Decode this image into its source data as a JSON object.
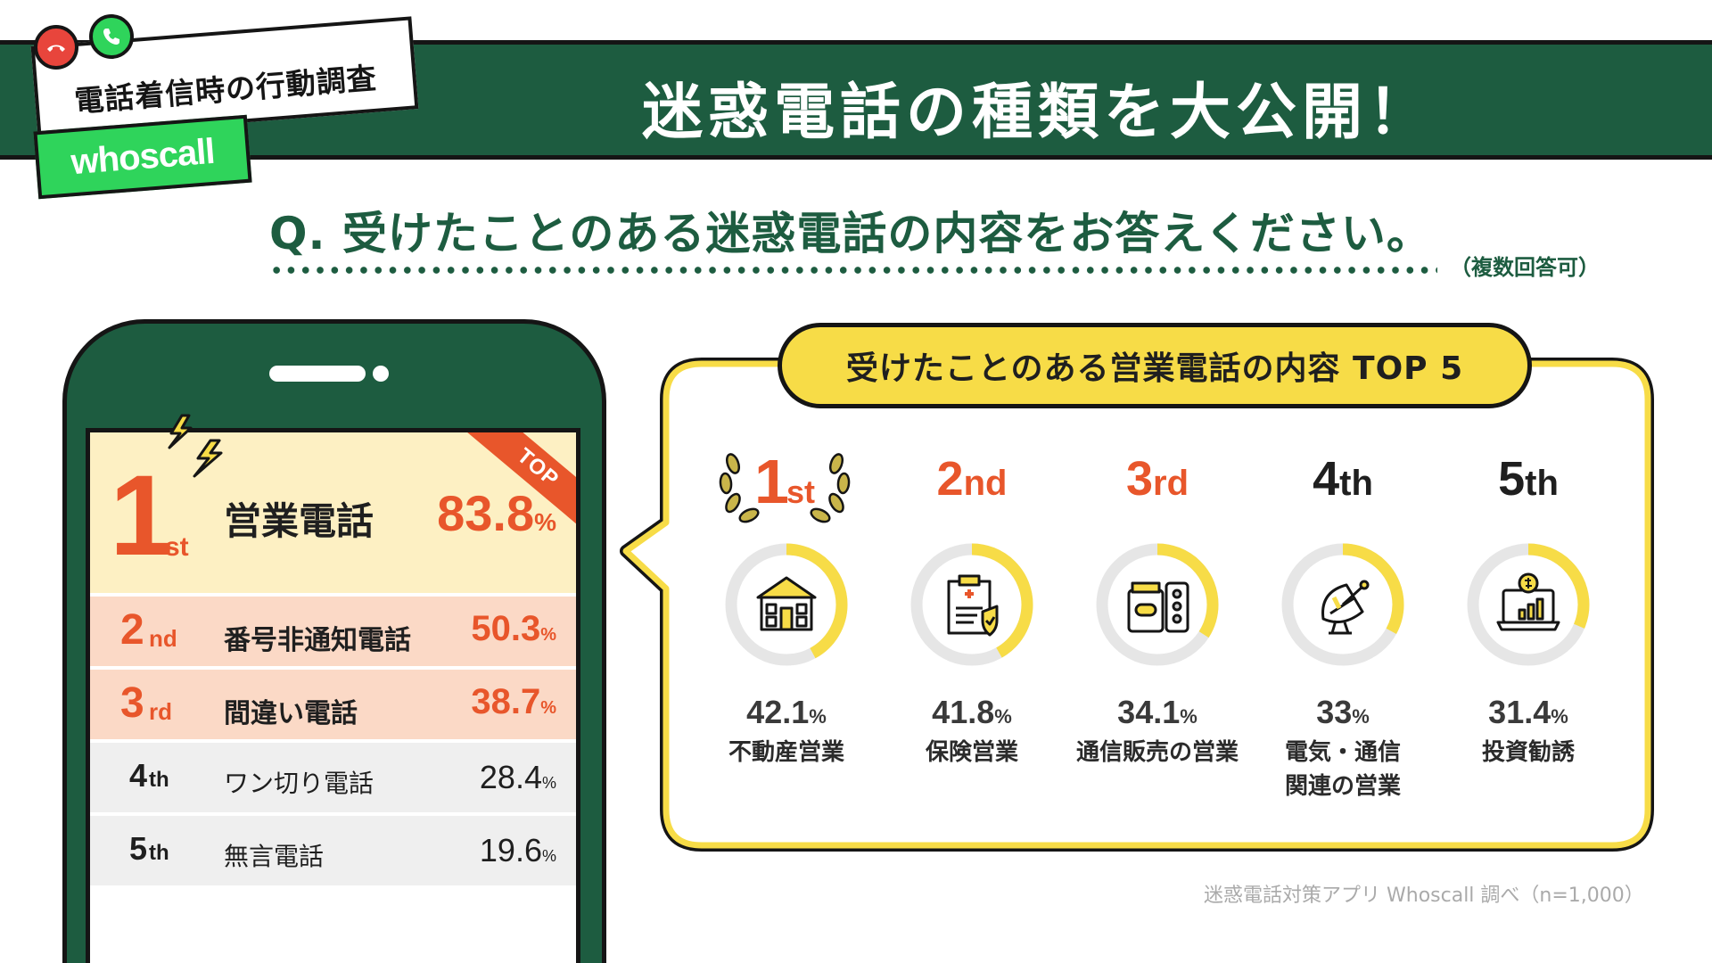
{
  "header": {
    "survey_tag": "電話着信時の行動調査",
    "brand": "whoscall",
    "title": "迷惑電話の種類を大公開！"
  },
  "question": {
    "text": "Q. 受けたことのある迷惑電話の内容をお答えください。",
    "note": "（複数回答可）"
  },
  "phone": {
    "top_badge": "TOP",
    "ranking": [
      {
        "rank": "1",
        "suffix": "st",
        "label": "営業電話",
        "value": "83.8",
        "unit": "%"
      },
      {
        "rank": "2",
        "suffix": "nd",
        "label": "番号非通知電話",
        "value": "50.3",
        "unit": "%"
      },
      {
        "rank": "3",
        "suffix": "rd",
        "label": "間違い電話",
        "value": "38.7",
        "unit": "%"
      },
      {
        "rank": "4",
        "suffix": "th",
        "label": "ワン切り電話",
        "value": "28.4",
        "unit": "%"
      },
      {
        "rank": "5",
        "suffix": "th",
        "label": "無言電話",
        "value": "19.6",
        "unit": "%"
      }
    ]
  },
  "callout": {
    "title": "受けたことのある営業電話の内容 TOP 5",
    "items": [
      {
        "rank": "1",
        "suffix": "st",
        "value": "42.1",
        "unit": "%",
        "label": "不動産営業",
        "icon": "house-icon"
      },
      {
        "rank": "2",
        "suffix": "nd",
        "value": "41.8",
        "unit": "%",
        "label": "保険営業",
        "icon": "insurance-clipboard-icon"
      },
      {
        "rank": "3",
        "suffix": "rd",
        "value": "34.1",
        "unit": "%",
        "label": "通信販売の営業",
        "icon": "supplement-icon"
      },
      {
        "rank": "4",
        "suffix": "th",
        "value": "33",
        "unit": "%",
        "label": "電気・通信\n関連の営業",
        "icon": "satellite-dish-icon"
      },
      {
        "rank": "5",
        "suffix": "th",
        "value": "31.4",
        "unit": "%",
        "label": "投資勧誘",
        "icon": "investment-laptop-icon"
      }
    ]
  },
  "source": "迷惑電話対策アプリ Whoscall 調べ（n=1,000）",
  "chart_data": [
    {
      "type": "bar",
      "categories": [
        "営業電話",
        "番号非通知電話",
        "間違い電話",
        "ワン切り電話",
        "無言電話"
      ],
      "values": [
        83.8,
        50.3,
        38.7,
        28.4,
        19.6
      ]
    },
    {
      "type": "pie",
      "title": "受けたことのある営業電話の内容 TOP 5",
      "categories": [
        "不動産営業",
        "保険営業",
        "通信販売の営業",
        "電気・通信関連の営業",
        "投資勧誘"
      ],
      "values": [
        42.1,
        41.8,
        34.1,
        33,
        31.4
      ]
    }
  ],
  "colors": {
    "green": "#1d5c40",
    "orange": "#e8562b",
    "yellow": "#f7dc47",
    "brand_green": "#2fd45b",
    "ring_gray": "#e6e6e6"
  }
}
